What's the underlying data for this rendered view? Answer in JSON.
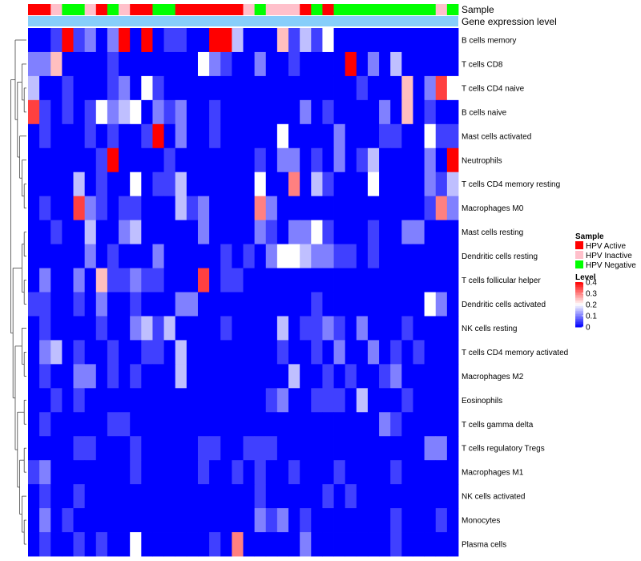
{
  "chart_data": {
    "type": "heatmap",
    "title": "",
    "annotation_tracks": [
      "Sample",
      "Gene expression level"
    ],
    "rows": [
      "B cells memory",
      "T cells CD8",
      "T cells CD4 naive",
      "B cells naive",
      "Mast cells activated",
      "Neutrophils",
      "T cells CD4 memory resting",
      "Macrophages M0",
      "Mast cells resting",
      "Dendritic cells resting",
      "T cells follicular helper",
      "Dendritic cells activated",
      "NK cells resting",
      "T cells CD4 memory activated",
      "Macrophages M2",
      "Eosinophils",
      "T cells gamma delta",
      "T cells regulatory  Tregs",
      "Macrophages M1",
      "NK cells activated",
      "Monocytes",
      "Plasma cells"
    ],
    "column_samples": [
      "Active",
      "Active",
      "Inactive",
      "Negative",
      "Negative",
      "Inactive",
      "Active",
      "Negative",
      "Inactive",
      "Active",
      "Active",
      "Negative",
      "Negative",
      "Active",
      "Active",
      "Active",
      "Active",
      "Active",
      "Active",
      "Inactive",
      "Negative",
      "Inactive",
      "Inactive",
      "Inactive",
      "Active",
      "Negative",
      "Active",
      "Negative",
      "Negative",
      "Negative",
      "Negative",
      "Negative",
      "Negative",
      "Negative",
      "Negative",
      "Negative",
      "Inactive",
      "Negative"
    ],
    "matrix": [
      [
        0.0,
        0.0,
        0.05,
        0.4,
        0.05,
        0.1,
        0.0,
        0.1,
        0.4,
        0.0,
        0.4,
        0.0,
        0.05,
        0.05,
        0.0,
        0.0,
        0.4,
        0.4,
        0.15,
        0.0,
        0.0,
        0.0,
        0.25,
        0.05,
        0.15,
        0.05,
        0.2,
        0.0,
        0.0,
        0.0,
        0.0,
        0.0,
        0.0,
        0.0,
        0.0,
        0.0,
        0.0,
        0.0
      ],
      [
        0.1,
        0.1,
        0.25,
        0.0,
        0.0,
        0.0,
        0.0,
        0.05,
        0.0,
        0.0,
        0.0,
        0.0,
        0.0,
        0.0,
        0.0,
        0.2,
        0.1,
        0.05,
        0.0,
        0.0,
        0.1,
        0.0,
        0.0,
        0.05,
        0.0,
        0.0,
        0.0,
        0.0,
        0.4,
        0.0,
        0.1,
        0.0,
        0.15,
        0.0,
        0.0,
        0.0,
        0.0,
        0.0
      ],
      [
        0.15,
        0.0,
        0.0,
        0.05,
        0.0,
        0.0,
        0.0,
        0.05,
        0.1,
        0.0,
        0.2,
        0.05,
        0.0,
        0.0,
        0.0,
        0.0,
        0.0,
        0.0,
        0.0,
        0.0,
        0.0,
        0.0,
        0.0,
        0.0,
        0.0,
        0.0,
        0.0,
        0.0,
        0.0,
        0.05,
        0.0,
        0.0,
        0.0,
        0.25,
        0.0,
        0.1,
        0.35,
        0.2
      ],
      [
        0.35,
        0.05,
        0.0,
        0.05,
        0.0,
        0.05,
        0.2,
        0.1,
        0.15,
        0.2,
        0.0,
        0.1,
        0.05,
        0.1,
        0.0,
        0.0,
        0.05,
        0.0,
        0.0,
        0.0,
        0.0,
        0.0,
        0.0,
        0.0,
        0.1,
        0.0,
        0.05,
        0.0,
        0.0,
        0.0,
        0.0,
        0.1,
        0.0,
        0.25,
        0.0,
        0.05,
        0.0,
        0.0
      ],
      [
        0.0,
        0.05,
        0.0,
        0.0,
        0.0,
        0.05,
        0.0,
        0.05,
        0.0,
        0.0,
        0.05,
        0.4,
        0.0,
        0.1,
        0.0,
        0.0,
        0.05,
        0.0,
        0.0,
        0.0,
        0.0,
        0.0,
        0.2,
        0.0,
        0.0,
        0.0,
        0.0,
        0.1,
        0.0,
        0.0,
        0.0,
        0.05,
        0.05,
        0.0,
        0.0,
        0.2,
        0.05,
        0.05
      ],
      [
        0.0,
        0.0,
        0.0,
        0.0,
        0.0,
        0.0,
        0.05,
        0.4,
        0.0,
        0.0,
        0.0,
        0.0,
        0.05,
        0.0,
        0.0,
        0.0,
        0.0,
        0.0,
        0.0,
        0.0,
        0.05,
        0.0,
        0.1,
        0.1,
        0.0,
        0.05,
        0.0,
        0.1,
        0.0,
        0.05,
        0.15,
        0.0,
        0.0,
        0.0,
        0.0,
        0.1,
        0.0,
        0.4
      ],
      [
        0.0,
        0.0,
        0.0,
        0.0,
        0.15,
        0.0,
        0.05,
        0.0,
        0.0,
        0.2,
        0.0,
        0.05,
        0.05,
        0.15,
        0.0,
        0.0,
        0.0,
        0.0,
        0.0,
        0.0,
        0.2,
        0.0,
        0.0,
        0.3,
        0.0,
        0.15,
        0.05,
        0.0,
        0.0,
        0.0,
        0.2,
        0.0,
        0.0,
        0.0,
        0.0,
        0.1,
        0.05,
        0.15
      ],
      [
        0.0,
        0.05,
        0.0,
        0.0,
        0.35,
        0.1,
        0.05,
        0.0,
        0.05,
        0.05,
        0.0,
        0.0,
        0.0,
        0.15,
        0.05,
        0.1,
        0.0,
        0.0,
        0.0,
        0.0,
        0.3,
        0.1,
        0.0,
        0.0,
        0.0,
        0.0,
        0.0,
        0.0,
        0.0,
        0.0,
        0.0,
        0.0,
        0.0,
        0.0,
        0.0,
        0.05,
        0.3,
        0.1
      ],
      [
        0.0,
        0.0,
        0.05,
        0.0,
        0.0,
        0.15,
        0.0,
        0.0,
        0.1,
        0.15,
        0.0,
        0.0,
        0.0,
        0.0,
        0.0,
        0.1,
        0.0,
        0.0,
        0.0,
        0.0,
        0.1,
        0.05,
        0.0,
        0.1,
        0.1,
        0.2,
        0.05,
        0.0,
        0.0,
        0.0,
        0.05,
        0.0,
        0.0,
        0.1,
        0.1,
        0.0,
        0.0,
        0.0
      ],
      [
        0.0,
        0.0,
        0.0,
        0.0,
        0.0,
        0.1,
        0.0,
        0.05,
        0.0,
        0.0,
        0.0,
        0.1,
        0.0,
        0.0,
        0.0,
        0.0,
        0.0,
        0.05,
        0.0,
        0.05,
        0.0,
        0.1,
        0.2,
        0.2,
        0.15,
        0.1,
        0.1,
        0.05,
        0.05,
        0.0,
        0.05,
        0.0,
        0.0,
        0.0,
        0.0,
        0.0,
        0.0,
        0.0
      ],
      [
        0.0,
        0.1,
        0.0,
        0.0,
        0.1,
        0.0,
        0.25,
        0.05,
        0.05,
        0.1,
        0.05,
        0.05,
        0.0,
        0.0,
        0.0,
        0.35,
        0.0,
        0.05,
        0.05,
        0.0,
        0.0,
        0.0,
        0.0,
        0.0,
        0.0,
        0.0,
        0.0,
        0.0,
        0.0,
        0.0,
        0.0,
        0.0,
        0.0,
        0.0,
        0.0,
        0.0,
        0.0,
        0.0
      ],
      [
        0.05,
        0.05,
        0.0,
        0.0,
        0.05,
        0.0,
        0.1,
        0.0,
        0.0,
        0.05,
        0.0,
        0.0,
        0.0,
        0.1,
        0.1,
        0.0,
        0.0,
        0.0,
        0.0,
        0.0,
        0.0,
        0.0,
        0.0,
        0.0,
        0.0,
        0.05,
        0.0,
        0.0,
        0.0,
        0.0,
        0.0,
        0.0,
        0.0,
        0.0,
        0.0,
        0.2,
        0.1,
        0.0
      ],
      [
        0.0,
        0.05,
        0.0,
        0.0,
        0.0,
        0.0,
        0.05,
        0.0,
        0.0,
        0.1,
        0.15,
        0.05,
        0.15,
        0.0,
        0.0,
        0.0,
        0.0,
        0.05,
        0.0,
        0.0,
        0.0,
        0.0,
        0.15,
        0.0,
        0.05,
        0.05,
        0.1,
        0.05,
        0.0,
        0.1,
        0.0,
        0.0,
        0.0,
        0.05,
        0.0,
        0.0,
        0.0,
        0.0
      ],
      [
        0.0,
        0.1,
        0.15,
        0.0,
        0.05,
        0.0,
        0.0,
        0.05,
        0.0,
        0.0,
        0.05,
        0.05,
        0.0,
        0.15,
        0.0,
        0.0,
        0.0,
        0.0,
        0.0,
        0.0,
        0.0,
        0.0,
        0.05,
        0.0,
        0.0,
        0.05,
        0.0,
        0.1,
        0.0,
        0.0,
        0.1,
        0.0,
        0.05,
        0.0,
        0.05,
        0.0,
        0.0,
        0.0
      ],
      [
        0.0,
        0.05,
        0.0,
        0.0,
        0.1,
        0.1,
        0.0,
        0.05,
        0.0,
        0.05,
        0.0,
        0.0,
        0.0,
        0.15,
        0.0,
        0.0,
        0.0,
        0.0,
        0.0,
        0.0,
        0.0,
        0.0,
        0.0,
        0.15,
        0.0,
        0.0,
        0.05,
        0.0,
        0.05,
        0.0,
        0.0,
        0.05,
        0.1,
        0.0,
        0.0,
        0.0,
        0.0,
        0.0
      ],
      [
        0.0,
        0.0,
        0.05,
        0.0,
        0.05,
        0.0,
        0.0,
        0.0,
        0.0,
        0.0,
        0.0,
        0.0,
        0.0,
        0.0,
        0.0,
        0.0,
        0.0,
        0.0,
        0.0,
        0.0,
        0.0,
        0.05,
        0.1,
        0.0,
        0.0,
        0.05,
        0.05,
        0.05,
        0.0,
        0.15,
        0.0,
        0.0,
        0.0,
        0.05,
        0.0,
        0.0,
        0.0,
        0.0
      ],
      [
        0.0,
        0.05,
        0.0,
        0.0,
        0.0,
        0.0,
        0.0,
        0.05,
        0.05,
        0.0,
        0.0,
        0.0,
        0.0,
        0.0,
        0.0,
        0.0,
        0.0,
        0.0,
        0.0,
        0.0,
        0.0,
        0.0,
        0.0,
        0.0,
        0.0,
        0.0,
        0.0,
        0.0,
        0.0,
        0.0,
        0.0,
        0.1,
        0.05,
        0.0,
        0.0,
        0.0,
        0.0,
        0.0
      ],
      [
        0.0,
        0.0,
        0.0,
        0.0,
        0.05,
        0.05,
        0.0,
        0.0,
        0.0,
        0.05,
        0.0,
        0.0,
        0.0,
        0.0,
        0.0,
        0.05,
        0.05,
        0.0,
        0.0,
        0.05,
        0.05,
        0.05,
        0.0,
        0.0,
        0.0,
        0.0,
        0.0,
        0.0,
        0.0,
        0.0,
        0.0,
        0.0,
        0.0,
        0.0,
        0.0,
        0.1,
        0.1,
        0.0
      ],
      [
        0.05,
        0.1,
        0.0,
        0.0,
        0.0,
        0.0,
        0.0,
        0.0,
        0.0,
        0.05,
        0.0,
        0.0,
        0.0,
        0.0,
        0.0,
        0.05,
        0.0,
        0.0,
        0.05,
        0.0,
        0.05,
        0.0,
        0.0,
        0.05,
        0.0,
        0.0,
        0.0,
        0.05,
        0.0,
        0.0,
        0.0,
        0.0,
        0.05,
        0.0,
        0.0,
        0.0,
        0.0,
        0.0
      ],
      [
        0.0,
        0.05,
        0.0,
        0.0,
        0.05,
        0.0,
        0.0,
        0.0,
        0.0,
        0.0,
        0.0,
        0.0,
        0.0,
        0.0,
        0.0,
        0.0,
        0.0,
        0.0,
        0.0,
        0.0,
        0.05,
        0.0,
        0.0,
        0.0,
        0.0,
        0.0,
        0.05,
        0.0,
        0.05,
        0.0,
        0.0,
        0.0,
        0.0,
        0.0,
        0.0,
        0.0,
        0.0,
        0.0
      ],
      [
        0.0,
        0.1,
        0.0,
        0.05,
        0.0,
        0.0,
        0.0,
        0.0,
        0.0,
        0.0,
        0.0,
        0.0,
        0.0,
        0.0,
        0.0,
        0.0,
        0.0,
        0.0,
        0.0,
        0.0,
        0.1,
        0.05,
        0.1,
        0.0,
        0.05,
        0.0,
        0.0,
        0.0,
        0.0,
        0.0,
        0.0,
        0.0,
        0.05,
        0.0,
        0.0,
        0.0,
        0.05,
        0.0
      ],
      [
        0.0,
        0.05,
        0.0,
        0.0,
        0.05,
        0.0,
        0.05,
        0.0,
        0.0,
        0.2,
        0.0,
        0.0,
        0.0,
        0.0,
        0.0,
        0.0,
        0.05,
        0.0,
        0.3,
        0.0,
        0.0,
        0.0,
        0.0,
        0.0,
        0.1,
        0.0,
        0.0,
        0.0,
        0.0,
        0.0,
        0.0,
        0.0,
        0.05,
        0.0,
        0.0,
        0.0,
        0.0,
        0.0
      ]
    ],
    "scale": {
      "min": 0,
      "max": 0.4,
      "low_color": "#0000ff",
      "mid_color": "#ffffff",
      "high_color": "#ff0000"
    },
    "gene_bar_color": "#87cefa",
    "legend": {
      "sample_title": "Sample",
      "sample_entries": [
        {
          "label": "HPV Active",
          "color": "#ff0000"
        },
        {
          "label": "HPV Inactive",
          "color": "#ffc0cb"
        },
        {
          "label": "HPV Negative",
          "color": "#00ff00"
        }
      ],
      "level_title": "Level",
      "level_ticks": [
        "0.4",
        "0.3",
        "0.2",
        "0.1",
        "0"
      ],
      "level_values": [
        0.4,
        0.3,
        0.2,
        0.1,
        0
      ]
    }
  }
}
